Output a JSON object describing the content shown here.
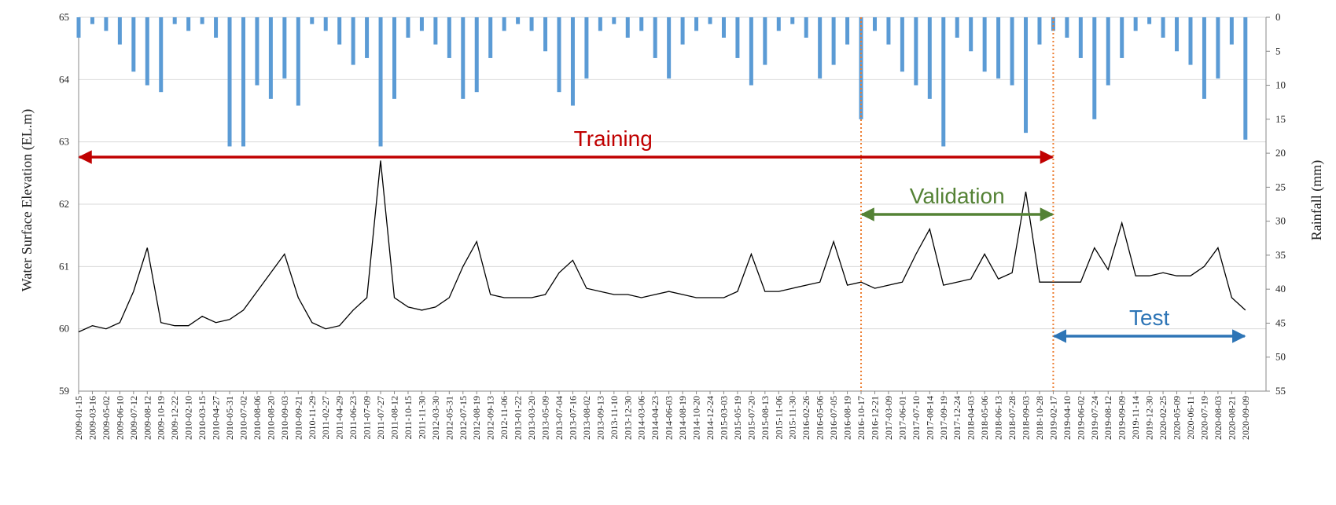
{
  "chart_data": {
    "type": "line_rain",
    "categories": [
      "2009-01-15",
      "2009-03-16",
      "2009-05-02",
      "2009-06-10",
      "2009-07-12",
      "2009-08-12",
      "2009-10-19",
      "2009-12-22",
      "2010-02-10",
      "2010-03-15",
      "2010-04-27",
      "2010-05-31",
      "2010-07-02",
      "2010-08-06",
      "2010-08-20",
      "2010-09-03",
      "2010-09-21",
      "2010-11-29",
      "2011-02-27",
      "2011-04-29",
      "2011-06-23",
      "2011-07-09",
      "2011-07-27",
      "2011-08-12",
      "2011-10-15",
      "2011-11-30",
      "2012-03-30",
      "2012-05-31",
      "2012-07-15",
      "2012-08-19",
      "2012-09-13",
      "2012-11-06",
      "2013-01-22",
      "2013-03-20",
      "2013-05-09",
      "2013-07-04",
      "2013-07-16",
      "2013-08-02",
      "2013-09-13",
      "2013-11-10",
      "2013-12-30",
      "2014-03-06",
      "2014-04-23",
      "2014-06-03",
      "2014-08-19",
      "2014-10-20",
      "2014-12-24",
      "2015-03-03",
      "2015-05-19",
      "2015-07-20",
      "2015-08-13",
      "2015-11-06",
      "2015-11-30",
      "2016-02-26",
      "2016-05-06",
      "2016-07-05",
      "2016-08-19",
      "2016-10-17",
      "2016-12-21",
      "2017-03-09",
      "2017-06-01",
      "2017-07-10",
      "2017-08-14",
      "2017-09-19",
      "2017-12-24",
      "2018-04-03",
      "2018-05-06",
      "2018-06-13",
      "2018-07-28",
      "2018-09-03",
      "2018-10-28",
      "2019-02-17",
      "2019-04-10",
      "2019-06-02",
      "2019-07-24",
      "2019-08-12",
      "2019-09-09",
      "2019-11-14",
      "2019-12-30",
      "2020-02-25",
      "2020-05-09",
      "2020-06-11",
      "2020-07-19",
      "2020-08-03",
      "2020-08-21",
      "2020-09-09"
    ],
    "series": [
      {
        "name": "Water Surface Elevation",
        "color": "#000000",
        "axis": "y",
        "values": [
          59.95,
          60.05,
          60.0,
          60.1,
          60.6,
          61.3,
          60.1,
          60.05,
          60.05,
          60.2,
          60.1,
          60.15,
          60.3,
          60.6,
          60.9,
          61.2,
          60.5,
          60.1,
          60.0,
          60.05,
          60.3,
          60.5,
          62.7,
          60.5,
          60.35,
          60.3,
          60.35,
          60.5,
          61.0,
          61.4,
          60.55,
          60.5,
          60.5,
          60.5,
          60.55,
          60.9,
          61.1,
          60.65,
          60.6,
          60.55,
          60.55,
          60.5,
          60.55,
          60.6,
          60.55,
          60.5,
          60.5,
          60.5,
          60.6,
          61.2,
          60.6,
          60.6,
          60.65,
          60.7,
          60.75,
          61.4,
          60.7,
          60.75,
          60.65,
          60.7,
          60.75,
          61.2,
          61.6,
          60.7,
          60.75,
          60.8,
          61.2,
          60.8,
          60.9,
          62.2,
          60.75,
          60.75,
          60.75,
          60.75,
          61.3,
          60.95,
          61.7,
          60.85,
          60.85,
          60.9,
          60.85,
          60.85,
          61.0,
          61.3,
          60.5,
          60.3
        ]
      },
      {
        "name": "Rainfall",
        "color": "#5b9bd5",
        "axis": "y2",
        "values": [
          3,
          1,
          2,
          4,
          8,
          10,
          11,
          1,
          2,
          1,
          3,
          19,
          19,
          10,
          12,
          9,
          13,
          1,
          2,
          4,
          7,
          6,
          19,
          12,
          3,
          2,
          4,
          6,
          12,
          11,
          6,
          2,
          1,
          2,
          5,
          11,
          13,
          9,
          2,
          1,
          3,
          2,
          6,
          9,
          4,
          2,
          1,
          3,
          6,
          10,
          7,
          2,
          1,
          3,
          9,
          7,
          4,
          15,
          2,
          4,
          8,
          10,
          12,
          19,
          3,
          5,
          8,
          9,
          10,
          17,
          4,
          2,
          3,
          6,
          15,
          10,
          6,
          2,
          1,
          3,
          5,
          7,
          12,
          9,
          4,
          18
        ]
      }
    ],
    "ylim": [
      59,
      65
    ],
    "yticks": [
      59,
      60,
      61,
      62,
      63,
      64,
      65
    ],
    "y2lim": [
      0,
      55
    ],
    "y2ticks": [
      0,
      5,
      10,
      15,
      20,
      25,
      30,
      35,
      40,
      45,
      50,
      55
    ],
    "y2_inverted": true,
    "ylabel": "Water Surface Elevation (EL.m)",
    "y2label": "Rainfall (mm)",
    "grid": true,
    "dividers": [
      "2016-10-17",
      "2019-02-17"
    ],
    "divider_color": "#ed7d31",
    "annotations": [
      {
        "text": "Training",
        "color": "#c00000",
        "start": "2009-01-15",
        "end": "2019-02-17"
      },
      {
        "text": "Validation",
        "color": "#548235",
        "start": "2016-10-17",
        "end": "2019-02-17"
      },
      {
        "text": "Test",
        "color": "#2e75b6",
        "start": "2019-02-17",
        "end": "2020-09-09"
      }
    ]
  }
}
